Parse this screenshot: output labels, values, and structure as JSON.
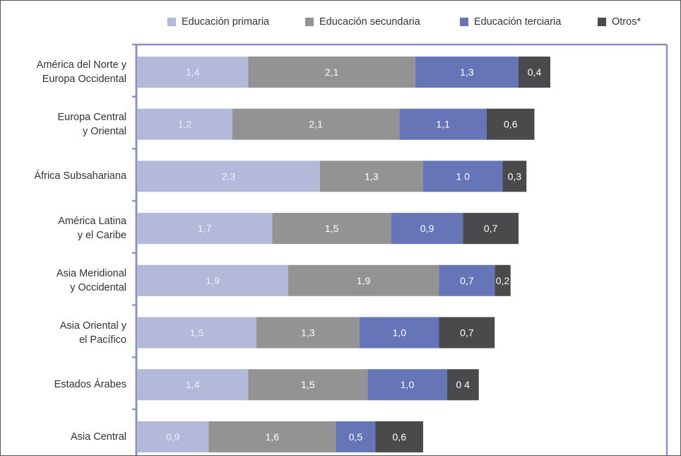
{
  "chart_data": {
    "type": "bar",
    "orientation": "horizontal",
    "stacked": true,
    "categories": [
      "América del Norte y\nEuropa Occidental",
      "Europa Central\ny Oriental",
      "África Subsahariana",
      "América Latina\ny el Caribe",
      "Asia Meridional\ny Occidental",
      "Asia Oriental y\nel Pacífico",
      "Estados Árabes",
      "Asia Central"
    ],
    "series": [
      {
        "name": "Educación primaria",
        "color": "#b3b9d9",
        "values": [
          1.4,
          1.2,
          2.3,
          1.7,
          1.9,
          1.5,
          1.4,
          0.9
        ],
        "labels": [
          "1,4",
          "1,2",
          "2,3",
          "1,7",
          "1,9",
          "1,5",
          "1,4",
          "0,9"
        ]
      },
      {
        "name": "Educación secundaria",
        "color": "#939393",
        "values": [
          2.1,
          2.1,
          1.3,
          1.5,
          1.9,
          1.3,
          1.5,
          1.6
        ],
        "labels": [
          "2,1",
          "2,1",
          "1,3",
          "1,5",
          "1,9",
          "1,3",
          "1,5",
          "1,6"
        ]
      },
      {
        "name": "Educación terciaria",
        "color": "#6675b8",
        "values": [
          1.3,
          1.1,
          1.0,
          0.9,
          0.7,
          1.0,
          1.0,
          0.5
        ],
        "labels": [
          "1,3",
          "1,1",
          "1 0",
          "0,9",
          "0,7",
          "1,0",
          "1,0",
          "0,5"
        ]
      },
      {
        "name": "Otros*",
        "color": "#4a4a4c",
        "values": [
          0.4,
          0.6,
          0.3,
          0.7,
          0.2,
          0.7,
          0.4,
          0.6
        ],
        "labels": [
          "0,4",
          "0,6",
          "0,3",
          "0,7",
          "0,2",
          "0,7",
          "0 4",
          "0,6"
        ]
      }
    ],
    "legend_position": "top",
    "grid": false,
    "xlim": [
      0,
      5.5
    ],
    "axis_color": "#8a93c9"
  }
}
